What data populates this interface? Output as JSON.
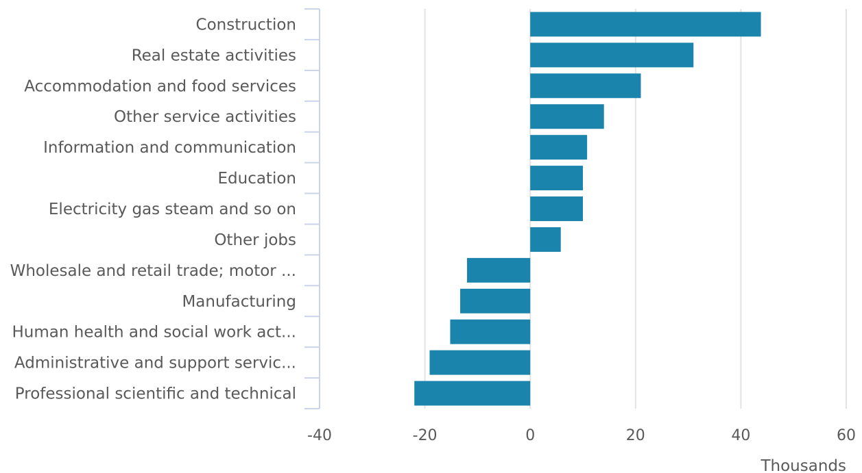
{
  "chart_data": {
    "type": "bar",
    "orientation": "horizontal",
    "categories": [
      "Construction",
      "Real estate activities",
      "Accommodation and food services",
      "Other service activities",
      "Information and communication",
      "Education",
      "Electricity gas steam and so on",
      "Other jobs",
      "Wholesale and retail trade; motor ...",
      "Manufacturing",
      "Human health and social work act...",
      "Administrative and support servic...",
      "Professional scientific and technical"
    ],
    "values": [
      43.8,
      31,
      21,
      14,
      10.8,
      10,
      10,
      5.8,
      -12,
      -13.3,
      -15.2,
      -19.1,
      -22
    ],
    "xlim": [
      -40,
      60
    ],
    "xticks": [
      -40,
      -20,
      0,
      20,
      40,
      60
    ],
    "xtick_labels": [
      "-40",
      "-20",
      "0",
      "20",
      "40",
      "60"
    ],
    "xlabel": "Thousands",
    "ylabel": "",
    "title": "",
    "grid": true,
    "legend": "none",
    "bar_color": "#1a84ac"
  }
}
